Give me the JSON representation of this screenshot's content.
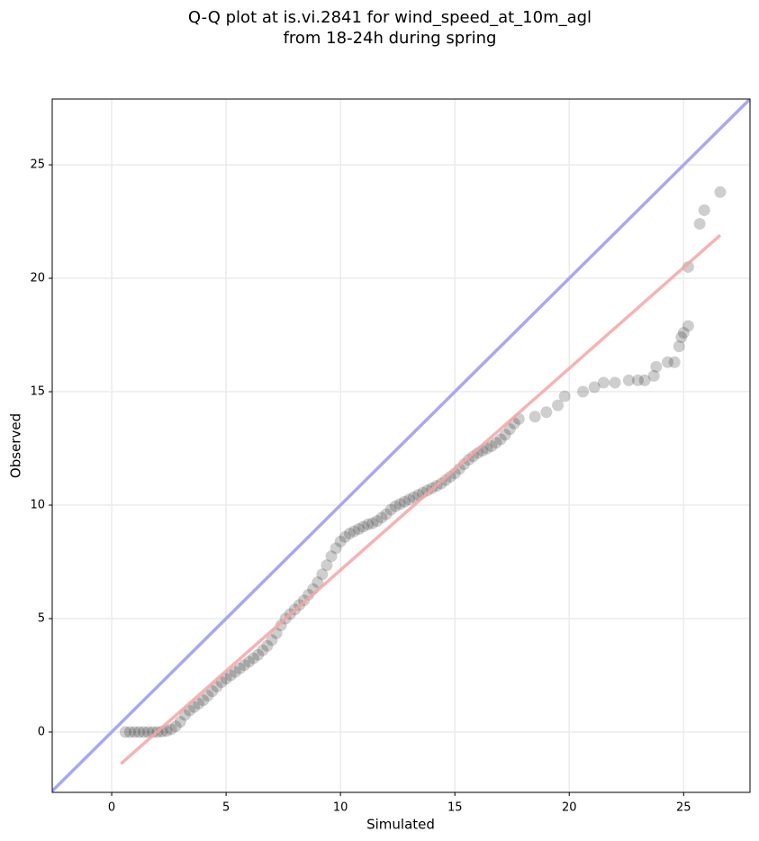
{
  "chart_data": {
    "type": "scatter",
    "title": "Q-Q plot at is.vi.2841 for wind_speed_at_10m_agl",
    "subtitle": "from 18-24h during spring",
    "x_label": "Simulated",
    "y_label": "Observed",
    "xlim": [
      -2.6,
      27.9
    ],
    "ylim": [
      -2.66,
      27.9
    ],
    "xticks": [
      0,
      5,
      10,
      15,
      20,
      25
    ],
    "yticks": [
      0,
      5,
      10,
      15,
      20,
      25
    ],
    "grid": true,
    "point_color": "#222222",
    "reference_line": {
      "color": "#a8a8f0",
      "x": [
        -2.6,
        27.9
      ],
      "y": [
        -2.6,
        27.9
      ]
    },
    "fit_line": {
      "color": "#f4a6a6",
      "x": [
        0.4,
        26.6
      ],
      "y": [
        -1.4,
        21.9
      ]
    },
    "x": [
      0.6,
      0.8,
      1.0,
      1.2,
      1.4,
      1.6,
      1.8,
      2.0,
      2.2,
      2.4,
      2.6,
      2.8,
      3.0,
      3.2,
      3.4,
      3.6,
      3.8,
      4.0,
      4.2,
      4.4,
      4.6,
      4.8,
      5.0,
      5.2,
      5.4,
      5.6,
      5.8,
      6.0,
      6.2,
      6.4,
      6.6,
      6.8,
      7.0,
      7.2,
      7.4,
      7.6,
      7.8,
      8.0,
      8.2,
      8.4,
      8.6,
      8.8,
      9.0,
      9.2,
      9.4,
      9.6,
      9.8,
      10.0,
      10.2,
      10.4,
      10.6,
      10.8,
      11.0,
      11.2,
      11.4,
      11.6,
      11.8,
      12.0,
      12.2,
      12.4,
      12.6,
      12.8,
      13.0,
      13.2,
      13.4,
      13.6,
      13.8,
      14.0,
      14.2,
      14.4,
      14.6,
      14.8,
      15.0,
      15.2,
      15.4,
      15.6,
      15.8,
      16.0,
      16.2,
      16.4,
      16.6,
      16.8,
      17.0,
      17.2,
      17.4,
      17.6,
      17.8,
      18.5,
      19.0,
      19.5,
      19.8,
      20.6,
      21.1,
      21.5,
      22.0,
      22.6,
      23.0,
      23.3,
      23.7,
      23.8,
      24.3,
      24.6,
      24.8,
      24.9,
      25.0,
      25.2,
      25.2,
      25.7,
      25.9,
      26.6
    ],
    "y": [
      0,
      0,
      0,
      0,
      0,
      0,
      0,
      0,
      0.02,
      0.05,
      0.12,
      0.25,
      0.45,
      0.75,
      0.95,
      1.1,
      1.25,
      1.4,
      1.6,
      1.8,
      2.0,
      2.2,
      2.35,
      2.5,
      2.65,
      2.8,
      2.95,
      3.1,
      3.25,
      3.4,
      3.6,
      3.8,
      4.05,
      4.35,
      4.7,
      5.0,
      5.2,
      5.4,
      5.6,
      5.8,
      6.05,
      6.3,
      6.6,
      6.95,
      7.35,
      7.75,
      8.1,
      8.4,
      8.6,
      8.75,
      8.85,
      8.95,
      9.05,
      9.15,
      9.2,
      9.3,
      9.45,
      9.6,
      9.8,
      9.95,
      10.05,
      10.15,
      10.25,
      10.35,
      10.45,
      10.55,
      10.65,
      10.75,
      10.85,
      10.95,
      11.1,
      11.25,
      11.4,
      11.6,
      11.8,
      12.0,
      12.15,
      12.3,
      12.4,
      12.5,
      12.6,
      12.75,
      12.9,
      13.1,
      13.35,
      13.6,
      13.8,
      13.9,
      14.1,
      14.4,
      14.8,
      15.0,
      15.2,
      15.4,
      15.4,
      15.5,
      15.5,
      15.5,
      15.7,
      16.1,
      16.3,
      16.3,
      17.0,
      17.4,
      17.6,
      17.9,
      20.5,
      22.4,
      23.0,
      23.8
    ]
  }
}
